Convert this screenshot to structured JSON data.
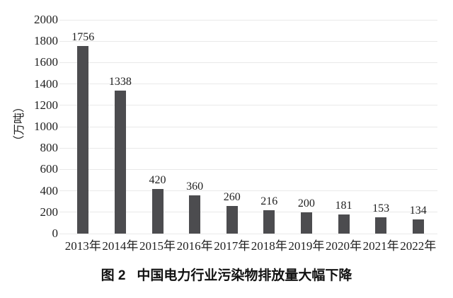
{
  "chart_data": {
    "type": "bar",
    "title": "图 2 中国电力行业污染物排放量大幅下降",
    "categories": [
      "2013年",
      "2014年",
      "2015年",
      "2016年",
      "2017年",
      "2018年",
      "2019年",
      "2020年",
      "2021年",
      "2022年"
    ],
    "values": [
      1756,
      1338,
      420,
      360,
      260,
      216,
      200,
      181,
      153,
      134
    ],
    "xlabel": "",
    "ylabel": "（万吨）",
    "ylim": [
      0,
      2000
    ],
    "yticks": [
      0,
      200,
      400,
      600,
      800,
      1000,
      1200,
      1400,
      1600,
      1800,
      2000
    ],
    "grid": "horizontal",
    "legend": "none",
    "bar_color": "#4c4c4f",
    "grid_color": "#e9e9e9",
    "text_color": "#1f1f1f",
    "background_color": "#ffffff"
  },
  "caption": {
    "figure_label": "图 2",
    "title": "中国电力行业污染物排放量大幅下降"
  }
}
